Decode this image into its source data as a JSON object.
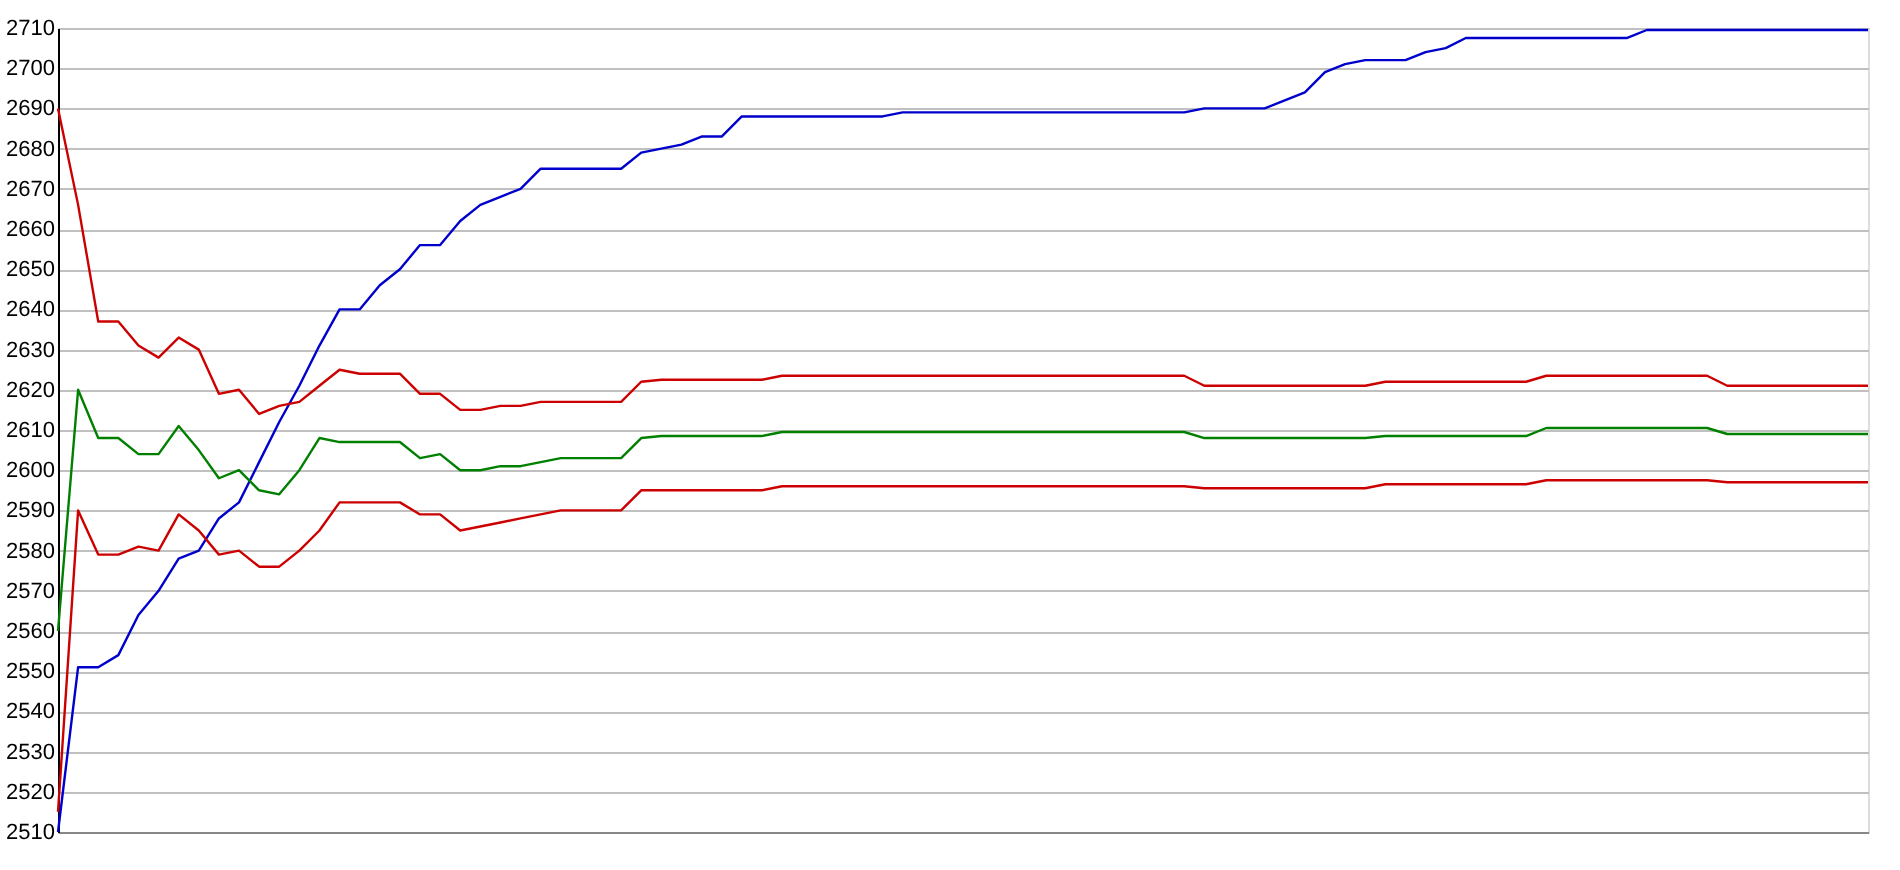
{
  "chart_data": {
    "type": "line",
    "categories": [
      null,
      null,
      null,
      null,
      null,
      null,
      null,
      null,
      null,
      null,
      null,
      null,
      null,
      null,
      null,
      null,
      null,
      null,
      null,
      null,
      null,
      null,
      null,
      null,
      null,
      null,
      null,
      null,
      null,
      null,
      null,
      null,
      null,
      null,
      null,
      null,
      null,
      null,
      null,
      null,
      null,
      null,
      null,
      null,
      null,
      null,
      null,
      null,
      null,
      null,
      null,
      null,
      null,
      null,
      null,
      null,
      null,
      null,
      null,
      null,
      null,
      null,
      null,
      null,
      null,
      null,
      null,
      null,
      null,
      null,
      null,
      null,
      null,
      null,
      null,
      null,
      null,
      null,
      null,
      null,
      null,
      null,
      null,
      null,
      null,
      null,
      null,
      null,
      null,
      null,
      null
    ],
    "series": [
      {
        "color": "#0000cc",
        "values": [
          2510,
          2551,
          2551,
          2554,
          2564,
          2570,
          2578,
          2580,
          2588,
          2592,
          2602,
          2612,
          2621,
          2631,
          2640,
          2640,
          2646,
          2650,
          2656,
          2656,
          2662,
          2666,
          2668,
          2670,
          2675,
          2675,
          2675,
          2675,
          2675,
          2679,
          2680,
          2681,
          2683,
          2683,
          2688,
          2688,
          2688,
          2688,
          2688,
          2688,
          2688,
          2688,
          2689,
          2689,
          2689,
          2689,
          2689,
          2689,
          2689,
          2689,
          2689,
          2689,
          2689,
          2689,
          2689,
          2689,
          2689,
          2690,
          2690,
          2690,
          2690,
          2692,
          2694,
          2699,
          2701,
          2702,
          2702,
          2702,
          2704,
          2705,
          2707.5,
          2707.5,
          2707.5,
          2707.5,
          2707.5,
          2707.5,
          2707.5,
          2707.5,
          2707.5,
          2709.5,
          2709.5,
          2709.5,
          2709.5,
          2709.5,
          2709.5,
          2709.5,
          2709.5,
          2709.5,
          2709.5,
          2709.5,
          2709.5
        ]
      },
      {
        "color": "#cc0000",
        "values": [
          2690,
          2666,
          2637,
          2637,
          2631,
          2628,
          2633,
          2630,
          2619,
          2620,
          2614,
          2616,
          2617,
          2621,
          2625,
          2624,
          2624,
          2624,
          2619,
          2619,
          2615,
          2615,
          2616,
          2616,
          2617,
          2617,
          2617,
          2617,
          2617,
          2622,
          2622.5,
          2622.5,
          2622.5,
          2622.5,
          2622.5,
          2622.5,
          2623.5,
          2623.5,
          2623.5,
          2623.5,
          2623.5,
          2623.5,
          2623.5,
          2623.5,
          2623.5,
          2623.5,
          2623.5,
          2623.5,
          2623.5,
          2623.5,
          2623.5,
          2623.5,
          2623.5,
          2623.5,
          2623.5,
          2623.5,
          2623.5,
          2621,
          2621,
          2621,
          2621,
          2621,
          2621,
          2621,
          2621,
          2621,
          2622,
          2622,
          2622,
          2622,
          2622,
          2622,
          2622,
          2622,
          2623.5,
          2623.5,
          2623.5,
          2623.5,
          2623.5,
          2623.5,
          2623.5,
          2623.5,
          2623.5,
          2621,
          2621,
          2621,
          2621,
          2621,
          2621,
          2621,
          2621
        ]
      },
      {
        "color": "#008000",
        "values": [
          2560,
          2620,
          2608,
          2608,
          2604,
          2604,
          2611,
          2605,
          2598,
          2600,
          2595,
          2594,
          2600,
          2608,
          2607,
          2607,
          2607,
          2607,
          2603,
          2604,
          2600,
          2600,
          2601,
          2601,
          2602,
          2603,
          2603,
          2603,
          2603,
          2608,
          2608.5,
          2608.5,
          2608.5,
          2608.5,
          2608.5,
          2608.5,
          2609.5,
          2609.5,
          2609.5,
          2609.5,
          2609.5,
          2609.5,
          2609.5,
          2609.5,
          2609.5,
          2609.5,
          2609.5,
          2609.5,
          2609.5,
          2609.5,
          2609.5,
          2609.5,
          2609.5,
          2609.5,
          2609.5,
          2609.5,
          2609.5,
          2608,
          2608,
          2608,
          2608,
          2608,
          2608,
          2608,
          2608,
          2608,
          2608.5,
          2608.5,
          2608.5,
          2608.5,
          2608.5,
          2608.5,
          2608.5,
          2608.5,
          2610.5,
          2610.5,
          2610.5,
          2610.5,
          2610.5,
          2610.5,
          2610.5,
          2610.5,
          2610.5,
          2609,
          2609,
          2609,
          2609,
          2609,
          2609,
          2609,
          2609
        ]
      },
      {
        "color": "#cc0000",
        "values": [
          2515,
          2590,
          2579,
          2579,
          2581,
          2580,
          2589,
          2585,
          2579,
          2580,
          2576,
          2576,
          2580,
          2585,
          2592,
          2592,
          2592,
          2592,
          2589,
          2589,
          2585,
          2586,
          2587,
          2588,
          2589,
          2590,
          2590,
          2590,
          2590,
          2595,
          2595,
          2595,
          2595,
          2595,
          2595,
          2595,
          2596,
          2596,
          2596,
          2596,
          2596,
          2596,
          2596,
          2596,
          2596,
          2596,
          2596,
          2596,
          2596,
          2596,
          2596,
          2596,
          2596,
          2596,
          2596,
          2596,
          2596,
          2595.5,
          2595.5,
          2595.5,
          2595.5,
          2595.5,
          2595.5,
          2595.5,
          2595.5,
          2595.5,
          2596.5,
          2596.5,
          2596.5,
          2596.5,
          2596.5,
          2596.5,
          2596.5,
          2596.5,
          2597.5,
          2597.5,
          2597.5,
          2597.5,
          2597.5,
          2597.5,
          2597.5,
          2597.5,
          2597.5,
          2597,
          2597,
          2597,
          2597,
          2597,
          2597,
          2597,
          2597
        ]
      }
    ],
    "ylim": [
      2510,
      2710
    ],
    "yticks": [
      2510,
      2520,
      2530,
      2540,
      2550,
      2560,
      2570,
      2580,
      2590,
      2600,
      2610,
      2620,
      2630,
      2640,
      2650,
      2660,
      2670,
      2680,
      2690,
      2700,
      2710
    ],
    "grid": "y",
    "tick_labels": "y"
  }
}
